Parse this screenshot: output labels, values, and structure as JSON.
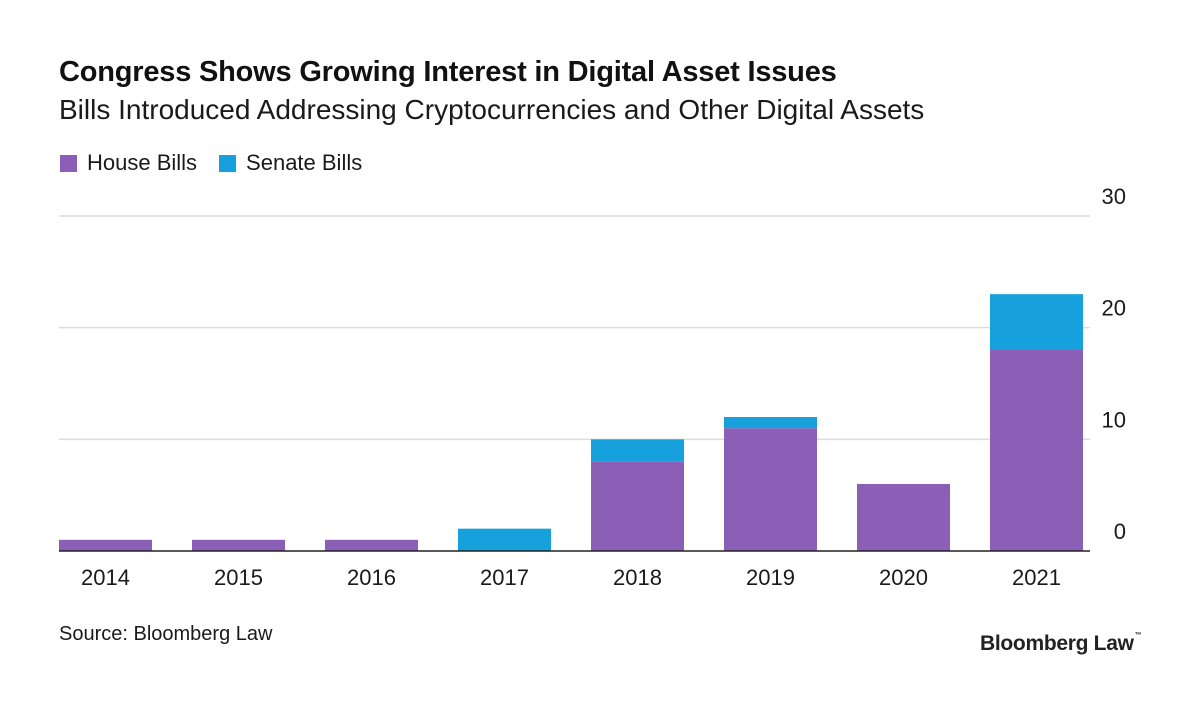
{
  "title": "Congress Shows Growing Interest in Digital Asset Issues",
  "subtitle": "Bills Introduced Addressing Cryptocurrencies and Other Digital Assets",
  "source": "Source: Bloomberg Law",
  "brand": "Bloomberg Law",
  "colors": {
    "house": "#8c5fb6",
    "senate": "#16a0dc",
    "grid": "#dcdcdc",
    "axis": "#222222"
  },
  "chart_data": {
    "type": "bar",
    "stacked": true,
    "categories": [
      "2014",
      "2015",
      "2016",
      "2017",
      "2018",
      "2019",
      "2020",
      "2021"
    ],
    "series": [
      {
        "name": "House Bills",
        "values": [
          1,
          1,
          1,
          0,
          8,
          11,
          6,
          18
        ]
      },
      {
        "name": "Senate Bills",
        "values": [
          0,
          0,
          0,
          2,
          2,
          1,
          0,
          5
        ]
      }
    ],
    "ylim": [
      0,
      30
    ],
    "yticks": [
      0,
      10,
      20,
      30
    ],
    "ytick_labels": [
      "0",
      "10",
      "20",
      "30"
    ],
    "y_axis_position": "right",
    "grid": true,
    "legend_position": "top-left",
    "xlabel": "",
    "ylabel": ""
  }
}
